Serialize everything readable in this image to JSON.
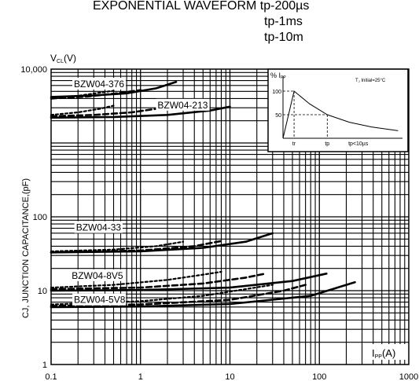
{
  "chart_data": {
    "type": "line",
    "title_lines": [
      "EXPONENTIAL WAVEFORM tp-200µs",
      "tp-1ms",
      "tp-10m"
    ],
    "ylabel_top": "V",
    "ylabel_top_sub": "CL",
    "ylabel_top_unit": "(V)",
    "ylabel": "CJ, JUNCTION CAPACITANCE,(pF)",
    "xlabel_main": "I",
    "xlabel_sub": "PP",
    "xlabel_unit": "(A)",
    "x_scale": "log",
    "y_scale": "log",
    "xlim": [
      0.1,
      1000
    ],
    "ylim": [
      1,
      10000
    ],
    "x_ticks": [
      {
        "value": 0.1,
        "label": "0.1"
      },
      {
        "value": 1,
        "label": "1"
      },
      {
        "value": 10,
        "label": "10"
      },
      {
        "value": 100,
        "label": "100"
      },
      {
        "value": 1000,
        "label": "1000"
      }
    ],
    "y_ticks": [
      {
        "value": 1,
        "label": "1"
      },
      {
        "value": 10,
        "label": "10"
      },
      {
        "value": 100,
        "label": "100"
      },
      {
        "value": 10000,
        "label": "10,000"
      }
    ],
    "grid": true,
    "series_labels": [
      {
        "text": "BZW04-376",
        "x": 0.18,
        "y": 5700
      },
      {
        "text": "BZW04-213",
        "x": 1.55,
        "y": 2950
      },
      {
        "text": "BZW04-33",
        "x": 0.19,
        "y": 65
      },
      {
        "text": "BZW04-8V5",
        "x": 0.17,
        "y": 14.5
      },
      {
        "text": "BZW04-5V8",
        "x": 0.18,
        "y": 6.8
      }
    ],
    "series": [
      {
        "label_ref": "BZW04-376",
        "waveform": "tp-200µs",
        "x": [
          0.1,
          0.3,
          0.7,
          1.5,
          2.5
        ],
        "y": [
          4200,
          4400,
          4700,
          5500,
          6700
        ]
      },
      {
        "label_ref": "BZW04-376",
        "waveform": "tp-1ms",
        "x": [
          0.1,
          0.25,
          0.55,
          1.0
        ],
        "y": [
          4000,
          4250,
          4700,
          5200
        ]
      },
      {
        "label_ref": "BZW04-376",
        "waveform": "tp-10m",
        "x": [
          0.1,
          0.2,
          0.35,
          0.5
        ],
        "y": [
          4100,
          4350,
          4800,
          5100
        ]
      },
      {
        "label_ref": "BZW04-213",
        "waveform": "tp-200µs",
        "x": [
          0.1,
          0.5,
          2,
          6,
          10
        ],
        "y": [
          2200,
          2250,
          2400,
          2750,
          3100
        ]
      },
      {
        "label_ref": "BZW04-213",
        "waveform": "tp-1ms",
        "x": [
          0.1,
          0.3,
          0.8,
          1.5,
          2.2
        ],
        "y": [
          2300,
          2400,
          2600,
          2900,
          3100
        ]
      },
      {
        "label_ref": "BZW04-213",
        "waveform": "tp-10m",
        "x": [
          0.1,
          0.2,
          0.35,
          0.5
        ],
        "y": [
          2400,
          2600,
          2900,
          3200
        ]
      },
      {
        "label_ref": "BZW04-33",
        "waveform": "tp-200µs",
        "x": [
          0.1,
          1,
          5,
          15,
          30
        ],
        "y": [
          33,
          34,
          38,
          46,
          60
        ]
      },
      {
        "label_ref": "BZW04-33",
        "waveform": "tp-1ms",
        "x": [
          0.1,
          1,
          4,
          8
        ],
        "y": [
          33,
          35,
          40,
          47
        ]
      },
      {
        "label_ref": "BZW04-33",
        "waveform": "tp-10m",
        "x": [
          0.1,
          0.5,
          1.5,
          3
        ],
        "y": [
          34,
          36,
          40,
          46
        ]
      },
      {
        "label_ref": "BZW04-8V5",
        "waveform": "tp-200µs",
        "x": [
          0.1,
          1,
          10,
          50,
          120
        ],
        "y": [
          10,
          10.2,
          11,
          13.5,
          17
        ]
      },
      {
        "label_ref": "BZW04-8V5",
        "waveform": "tp-1ms",
        "x": [
          0.1,
          1,
          5,
          15,
          25
        ],
        "y": [
          10.5,
          11,
          12.5,
          15,
          17
        ]
      },
      {
        "label_ref": "BZW04-8V5",
        "waveform": "tp-10m",
        "x": [
          0.1,
          0.5,
          2,
          5,
          8
        ],
        "y": [
          11,
          12,
          14,
          16.5,
          18
        ]
      },
      {
        "label_ref": "BZW04-5V8",
        "waveform": "tp-200µs",
        "x": [
          0.1,
          1,
          10,
          80,
          250
        ],
        "y": [
          6,
          6.1,
          6.6,
          8.5,
          13
        ]
      },
      {
        "label_ref": "BZW04-5V8",
        "waveform": "tp-1ms",
        "x": [
          0.1,
          1,
          10,
          40,
          70
        ],
        "y": [
          6.2,
          6.5,
          7.5,
          10,
          12
        ]
      },
      {
        "label_ref": "BZW04-5V8",
        "waveform": "tp-10m",
        "x": [
          0.1,
          1,
          5,
          15,
          30
        ],
        "y": [
          6.5,
          7.2,
          8.5,
          10.5,
          12
        ]
      }
    ],
    "inset": {
      "y_label": "% I",
      "y_label_sub": "PP",
      "note": "T",
      "note_sub": "J",
      "note_rest": " Initial=25°C",
      "y_ticks": [
        {
          "value": 100,
          "label": "100"
        },
        {
          "value": 50,
          "label": "50"
        }
      ],
      "x_markers": [
        {
          "value": 0.25,
          "label": "tr"
        },
        {
          "value": 1.0,
          "label": "tp"
        }
      ],
      "x_note": "tp<10µs",
      "xlim": [
        0,
        2.7
      ],
      "ylim": [
        0,
        125
      ],
      "curve_x": [
        0,
        0.25,
        0.6,
        1.0,
        1.5,
        2.0,
        2.6
      ],
      "curve_y": [
        0,
        100,
        73,
        50,
        34,
        24,
        16
      ]
    }
  }
}
